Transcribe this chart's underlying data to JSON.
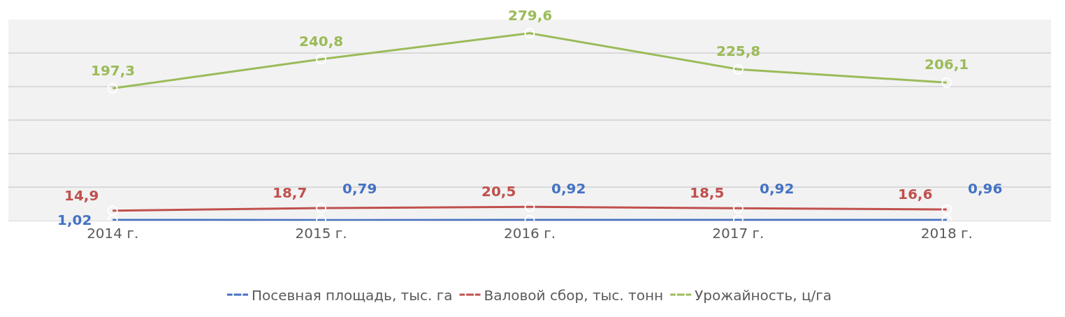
{
  "chart_data": {
    "type": "line",
    "categories": [
      "2014 г.",
      "2015 г.",
      "2016 г.",
      "2017 г.",
      "2018 г."
    ],
    "series": [
      {
        "name": "Посевная площадь, тыс. га",
        "color": "#4472c4",
        "values": [
          1.02,
          0.79,
          0.92,
          0.92,
          0.96
        ],
        "value_labels": [
          "1,02",
          "0,79",
          "0,92",
          "0,92",
          "0,96"
        ]
      },
      {
        "name": "Валовой сбор, тыс. тонн",
        "color": "#c0504d",
        "values": [
          14.9,
          18.7,
          20.5,
          18.5,
          16.6
        ],
        "value_labels": [
          "14,9",
          "18,7",
          "20,5",
          "18,5",
          "16,6"
        ]
      },
      {
        "name": "Урожайность, ц/га",
        "color": "#9bbb59",
        "values": [
          197.3,
          240.8,
          279.6,
          225.8,
          206.1
        ],
        "value_labels": [
          "197,3",
          "240,8",
          "279,6",
          "225,8",
          "206,1"
        ]
      }
    ],
    "ylim": [
      0,
      300
    ],
    "yticks": [
      {
        "value": 0,
        "label": null
      },
      {
        "value": 50,
        "label": null
      },
      {
        "value": 100,
        "label": null
      },
      {
        "value": 150,
        "label": null
      },
      {
        "value": 200,
        "label": null
      },
      {
        "value": 250,
        "label": null
      },
      {
        "value": 300,
        "label": null
      }
    ],
    "tick_labels": "x",
    "grid": "y",
    "legend": "bottom",
    "marker": "circle",
    "line_style": "solid"
  }
}
